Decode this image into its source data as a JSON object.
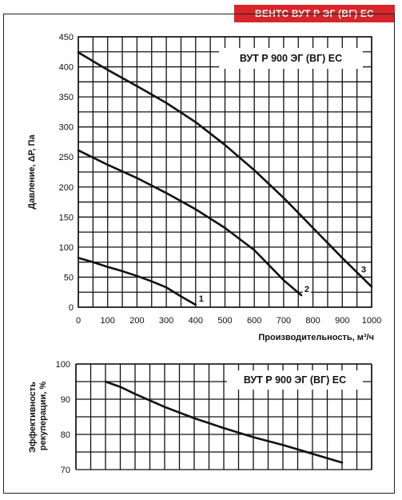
{
  "brand_label": "ВЕНТС ВУТ Р ЭГ (ВГ) ЕС",
  "chart_data": [
    {
      "type": "line",
      "title": "ВУТ Р 900 ЭГ (ВГ) ЕС",
      "xlabel": "Производительность, м³/ч",
      "ylabel": "Давление, ΔP, Па",
      "xlim": [
        0,
        1000
      ],
      "ylim": [
        0,
        450
      ],
      "xticks": [
        0,
        100,
        200,
        300,
        400,
        500,
        600,
        700,
        800,
        900,
        1000
      ],
      "yticks": [
        0,
        50,
        100,
        150,
        200,
        250,
        300,
        350,
        400,
        450
      ],
      "grid": true,
      "series": [
        {
          "name": "1",
          "x": [
            0,
            50,
            100,
            150,
            200,
            250,
            300,
            350,
            400
          ],
          "y": [
            82,
            75,
            67,
            60,
            52,
            43,
            33,
            18,
            4
          ]
        },
        {
          "name": "2",
          "x": [
            0,
            100,
            200,
            300,
            400,
            500,
            600,
            650,
            700,
            760
          ],
          "y": [
            261,
            237,
            215,
            190,
            163,
            132,
            95,
            70,
            45,
            20
          ]
        },
        {
          "name": "3",
          "x": [
            0,
            100,
            200,
            300,
            400,
            500,
            600,
            700,
            800,
            900,
            1000
          ],
          "y": [
            424,
            395,
            368,
            340,
            308,
            270,
            228,
            182,
            132,
            82,
            34
          ]
        }
      ]
    },
    {
      "type": "line",
      "title": "ВУТ Р 900 ЭГ (ВГ) ЕС",
      "ylabel": "Эффективность рекуперации, %",
      "xlim": [
        0,
        1000
      ],
      "ylim": [
        70,
        100
      ],
      "yticks": [
        70,
        80,
        90,
        100
      ],
      "grid": true,
      "series": [
        {
          "x": [
            100,
            150,
            200,
            300,
            400,
            500,
            600,
            700,
            800,
            900
          ],
          "y": [
            95,
            93.5,
            91.5,
            87.8,
            84.6,
            81.8,
            79.2,
            77,
            74.5,
            72
          ]
        }
      ]
    }
  ]
}
